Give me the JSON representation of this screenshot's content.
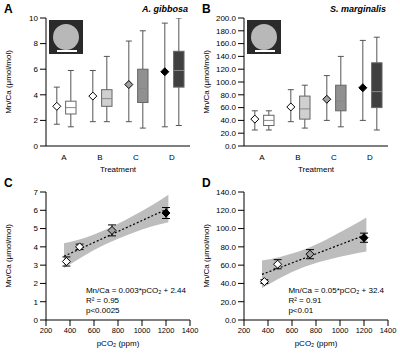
{
  "chart_data": [
    {
      "type": "box",
      "label": "A",
      "title": "A. gibbosa",
      "x_label": "Treatment",
      "y_label": "Mn/Ca (μmol/mol)",
      "categories": [
        "A",
        "B",
        "C",
        "D"
      ],
      "ylim": [
        0,
        10
      ],
      "yticks": [
        0,
        2,
        4,
        6,
        8,
        10
      ],
      "series": [
        {
          "type": "scatter",
          "marker": "diamond",
          "colors": [
            "#ffffff",
            "#ffffff",
            "#a0a0a0",
            "#000000"
          ],
          "values": [
            3.1,
            3.9,
            4.8,
            5.8
          ],
          "error_low": [
            1.7,
            1.9,
            1.9,
            1.5
          ],
          "error_high": [
            4.6,
            5.9,
            8.2,
            9.6
          ]
        },
        {
          "type": "box",
          "colors": [
            "#ffffff",
            "#d0d0d0",
            "#909090",
            "#404040"
          ],
          "whisker_low": [
            1.5,
            1.9,
            1.4,
            1.6
          ],
          "q1": [
            2.5,
            3.1,
            3.4,
            4.6
          ],
          "median": [
            3.0,
            3.7,
            4.5,
            5.9
          ],
          "q3": [
            3.5,
            4.4,
            6.0,
            7.4
          ],
          "whisker_high": [
            5.9,
            7.0,
            9.0,
            10.0
          ]
        }
      ]
    },
    {
      "type": "box",
      "label": "B",
      "title": "S. marginalis",
      "x_label": "Treatment",
      "y_label": "Mn/Ca (μmol/mol)",
      "categories": [
        "A",
        "B",
        "C",
        "D"
      ],
      "ylim": [
        0,
        200
      ],
      "yticks": [
        {
          "value": 0,
          "label": "0.0"
        },
        {
          "value": 20,
          "label": "20.0"
        },
        {
          "value": 40,
          "label": "40.0"
        },
        {
          "value": 60,
          "label": "60.0"
        },
        {
          "value": 80,
          "label": "80.0"
        },
        {
          "value": 100,
          "label": "100.0"
        },
        {
          "value": 120,
          "label": "120.0"
        },
        {
          "value": 140,
          "label": "140.0"
        },
        {
          "value": 160,
          "label": "160.0"
        },
        {
          "value": 180,
          "label": "180.0"
        },
        {
          "value": 200,
          "label": "200.0"
        }
      ],
      "series": [
        {
          "type": "scatter",
          "marker": "diamond",
          "colors": [
            "#ffffff",
            "#ffffff",
            "#a0a0a0",
            "#000000"
          ],
          "values": [
            42,
            61,
            73,
            91
          ],
          "error_low": [
            25,
            38,
            40,
            40
          ],
          "error_high": [
            55,
            88,
            110,
            165
          ]
        },
        {
          "type": "box",
          "colors": [
            "#ffffff",
            "#d0d0d0",
            "#909090",
            "#404040"
          ],
          "whisker_low": [
            25,
            28,
            30,
            25
          ],
          "q1": [
            32,
            42,
            55,
            60
          ],
          "median": [
            40,
            58,
            70,
            85
          ],
          "q3": [
            48,
            78,
            95,
            130
          ],
          "whisker_high": [
            55,
            95,
            140,
            170
          ]
        }
      ]
    },
    {
      "type": "scatter",
      "label": "C",
      "x_label": "pCO₂ (ppm)",
      "y_label": "Mn/Ca (μmol/mol)",
      "xlim": [
        200,
        1400
      ],
      "xticks": [
        200,
        400,
        600,
        800,
        1000,
        1200,
        1400
      ],
      "ylim": [
        0,
        7
      ],
      "yticks": [
        0,
        1,
        2,
        3,
        4,
        5,
        6,
        7
      ],
      "annotations": [
        "Mn/Ca = 0.003*pCO₂ + 2.44",
        "R² = 0.95",
        "p<0.0025"
      ],
      "series": [
        {
          "type": "scatter",
          "marker": "diamond",
          "colors": [
            "#ffffff",
            "#ffffff",
            "#a0a0a0",
            "#000000"
          ],
          "x": [
            370,
            480,
            750,
            1200
          ],
          "values": [
            3.2,
            4.0,
            4.9,
            5.85
          ],
          "error": [
            0.25,
            0.15,
            0.3,
            0.3
          ]
        },
        {
          "type": "line",
          "line_style": "dotted",
          "color": "#000000",
          "x": [
            350,
            500,
            700,
            900,
            1100,
            1220
          ],
          "values": [
            3.49,
            3.94,
            4.54,
            5.14,
            5.74,
            6.1
          ],
          "band_low": [
            2.85,
            3.45,
            4.15,
            4.7,
            5.15,
            5.35
          ],
          "band_high": [
            4.2,
            4.45,
            4.95,
            5.6,
            6.35,
            6.85
          ]
        }
      ]
    },
    {
      "type": "scatter",
      "label": "D",
      "x_label": "pCO₂ (ppm)",
      "y_label": "Mn/Ca (μmol/mol)",
      "xlim": [
        200,
        1400
      ],
      "xticks": [
        200,
        400,
        600,
        800,
        1000,
        1200,
        1400
      ],
      "ylim": [
        0,
        140
      ],
      "yticks": [
        {
          "value": 0,
          "label": "0.0"
        },
        {
          "value": 20,
          "label": "20.0"
        },
        {
          "value": 40,
          "label": "40.0"
        },
        {
          "value": 60,
          "label": "60.0"
        },
        {
          "value": 80,
          "label": "80.0"
        },
        {
          "value": 100,
          "label": "100.0"
        },
        {
          "value": 120,
          "label": "120.0"
        },
        {
          "value": 140,
          "label": "140.0"
        }
      ],
      "annotations": [
        "Mn/Ca = 0.05*pCO₂ + 32.4",
        "R² = 0.91",
        "p<0.01"
      ],
      "series": [
        {
          "type": "scatter",
          "marker": "diamond",
          "colors": [
            "#ffffff",
            "#ffffff",
            "#a0a0a0",
            "#000000"
          ],
          "x": [
            370,
            480,
            750,
            1200
          ],
          "values": [
            42,
            61,
            72,
            90
          ],
          "error": [
            2,
            5,
            5,
            5
          ]
        },
        {
          "type": "line",
          "line_style": "dotted",
          "color": "#000000",
          "x": [
            350,
            500,
            700,
            900,
            1100,
            1220
          ],
          "values": [
            49.9,
            57.4,
            67.4,
            77.4,
            87.4,
            93.4
          ],
          "band_low": [
            35,
            46,
            58,
            66,
            72,
            75
          ],
          "band_high": [
            65,
            69,
            77,
            89,
            103,
            112
          ]
        }
      ]
    }
  ]
}
